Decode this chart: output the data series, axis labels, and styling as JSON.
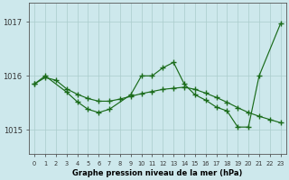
{
  "series1_x": [
    0,
    1,
    3,
    4,
    5,
    6,
    7,
    9,
    10,
    11,
    12,
    13,
    14,
    15,
    16,
    17,
    18,
    19,
    20,
    21,
    23
  ],
  "series1_y": [
    1015.85,
    1016.0,
    1015.7,
    1015.52,
    1015.38,
    1015.32,
    1015.38,
    1015.65,
    1016.0,
    1016.0,
    1016.15,
    1016.25,
    1015.85,
    1015.65,
    1015.55,
    1015.42,
    1015.35,
    1015.05,
    1015.05,
    1016.0,
    1016.97
  ],
  "series2_x": [
    0,
    1,
    2,
    3,
    4,
    5,
    6,
    7,
    8,
    9,
    10,
    11,
    12,
    13,
    14,
    15,
    16,
    17,
    18,
    19,
    20,
    21,
    22,
    23
  ],
  "series2_y": [
    1015.85,
    1015.97,
    1015.92,
    1015.76,
    1015.66,
    1015.58,
    1015.53,
    1015.53,
    1015.57,
    1015.62,
    1015.67,
    1015.71,
    1015.75,
    1015.77,
    1015.79,
    1015.75,
    1015.68,
    1015.6,
    1015.51,
    1015.41,
    1015.32,
    1015.25,
    1015.19,
    1015.13
  ],
  "line_color": "#1a6b1a",
  "background_color": "#cde8ec",
  "grid_color": "#aacccc",
  "xlabel": "Graphe pression niveau de la mer (hPa)",
  "ylim": [
    1014.55,
    1017.35
  ],
  "xlim": [
    -0.5,
    23.5
  ],
  "yticks": [
    1015,
    1016,
    1017
  ],
  "xticks": [
    0,
    1,
    2,
    3,
    4,
    5,
    6,
    7,
    8,
    9,
    10,
    11,
    12,
    13,
    14,
    15,
    16,
    17,
    18,
    19,
    20,
    21,
    22,
    23
  ]
}
